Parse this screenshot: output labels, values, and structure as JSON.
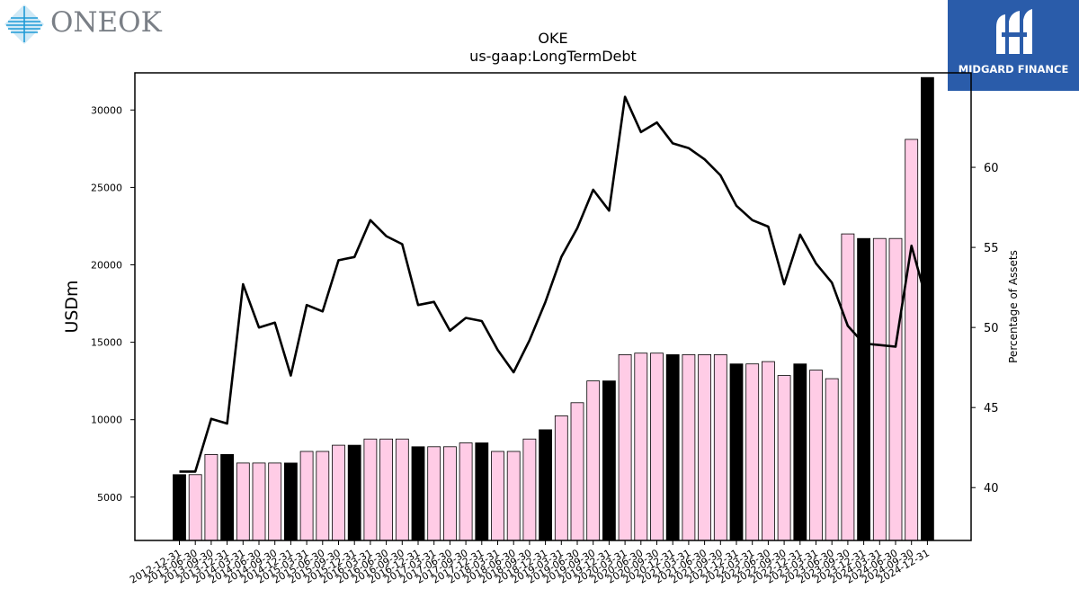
{
  "branding": {
    "left_logo_text": "ONEOK",
    "right_logo_text": "MIDGARD FINANCE",
    "right_logo_bg": "#2a5caa"
  },
  "colors": {
    "bar_q4": "#000000",
    "bar_other": "#ffcce6",
    "line": "#000000"
  },
  "chart_data": {
    "type": "bar",
    "title": "OKE",
    "subtitle": "us-gaap:LongTermDebt",
    "ylabel": "USDm",
    "y2label": "Percentage of Assets",
    "ylim": [
      2200,
      32400
    ],
    "y2lim": [
      36.7,
      65.9
    ],
    "yticks": [
      5000,
      10000,
      15000,
      20000,
      25000,
      30000
    ],
    "y2ticks": [
      40,
      45,
      50,
      55,
      60
    ],
    "categories": [
      "2012-12-31",
      "2013-06-30",
      "2013-09-30",
      "2013-12-31",
      "2014-03-31",
      "2014-06-30",
      "2014-09-30",
      "2014-12-31",
      "2015-03-31",
      "2015-06-30",
      "2015-09-30",
      "2015-12-31",
      "2016-03-31",
      "2016-06-30",
      "2016-09-30",
      "2016-12-31",
      "2017-03-31",
      "2017-06-30",
      "2017-09-30",
      "2017-12-31",
      "2018-03-31",
      "2018-06-30",
      "2018-09-30",
      "2018-12-31",
      "2019-03-31",
      "2019-06-30",
      "2019-09-30",
      "2019-12-31",
      "2020-03-31",
      "2020-06-30",
      "2020-09-30",
      "2020-12-31",
      "2021-03-31",
      "2021-06-30",
      "2021-09-30",
      "2021-12-31",
      "2022-03-31",
      "2022-06-30",
      "2022-09-30",
      "2022-12-31",
      "2023-03-31",
      "2023-06-30",
      "2023-09-30",
      "2023-12-31",
      "2024-03-31",
      "2024-06-30",
      "2024-09-30",
      "2024-12-31"
    ],
    "series": [
      {
        "kind": "bar",
        "values": [
          6450,
          6450,
          7750,
          7750,
          7200,
          7200,
          7200,
          7200,
          7950,
          7950,
          8350,
          8350,
          8750,
          8750,
          8750,
          8250,
          8250,
          8250,
          8500,
          8500,
          7950,
          7950,
          8750,
          9350,
          10250,
          11100,
          12500,
          12500,
          14200,
          14300,
          14300,
          14200,
          14200,
          14200,
          14200,
          13600,
          13600,
          13750,
          12850,
          13600,
          13200,
          12650,
          22000,
          21700,
          21700,
          21700,
          28100,
          32100
        ]
      },
      {
        "kind": "line",
        "axis": "right",
        "values": [
          41.0,
          41.0,
          44.3,
          44.0,
          52.7,
          50.0,
          50.3,
          47.0,
          51.4,
          51.0,
          54.2,
          54.4,
          56.7,
          55.7,
          55.2,
          51.4,
          51.6,
          49.8,
          50.6,
          50.4,
          48.6,
          47.2,
          49.2,
          51.6,
          54.4,
          56.2,
          58.6,
          57.3,
          64.4,
          62.2,
          62.8,
          61.5,
          61.2,
          60.5,
          59.5,
          57.6,
          56.7,
          56.3,
          52.7,
          55.8,
          54.0,
          52.8,
          50.1,
          49.0,
          48.9,
          48.8,
          55.1,
          51.5
        ]
      }
    ],
    "grid": false,
    "legend": "none"
  }
}
